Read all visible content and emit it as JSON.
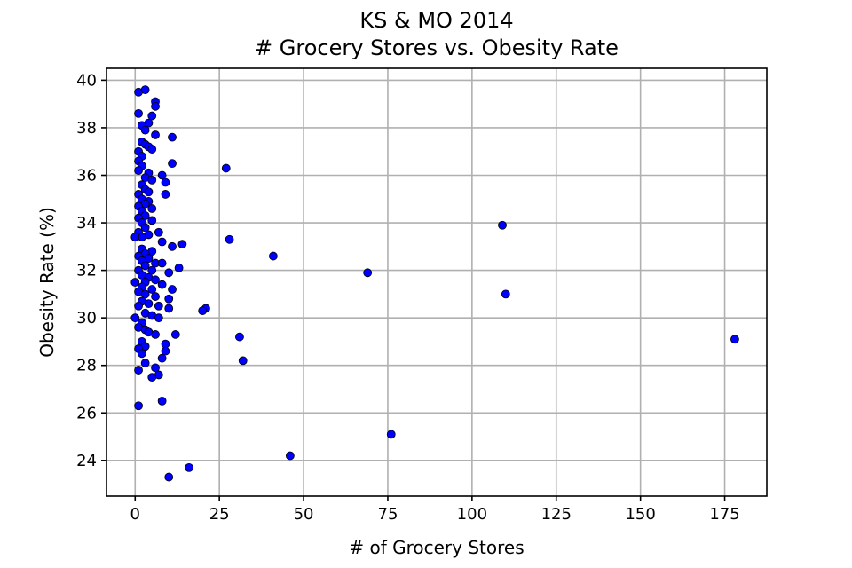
{
  "chart_data": {
    "type": "scatter",
    "title": "KS & MO 2014",
    "subtitle": "# Grocery Stores vs. Obesity Rate",
    "xlabel": "# of Grocery Stores",
    "ylabel": "Obesity Rate (%)",
    "xlim": [
      -8.5,
      187.5
    ],
    "ylim": [
      22.5,
      40.5
    ],
    "xticks": [
      0,
      25,
      50,
      75,
      100,
      125,
      150,
      175
    ],
    "yticks": [
      24,
      26,
      28,
      30,
      32,
      34,
      36,
      38,
      40
    ],
    "grid": true,
    "legend": "none",
    "marker_color": "#0000ff",
    "marker_edge_color": "#000000",
    "points": [
      [
        1,
        39.5
      ],
      [
        3,
        39.6
      ],
      [
        6,
        39.1
      ],
      [
        6,
        38.9
      ],
      [
        1,
        38.6
      ],
      [
        5,
        38.5
      ],
      [
        4,
        38.2
      ],
      [
        2,
        38.1
      ],
      [
        3,
        37.9
      ],
      [
        6,
        37.7
      ],
      [
        11,
        37.6
      ],
      [
        2,
        37.4
      ],
      [
        3,
        37.3
      ],
      [
        4,
        37.2
      ],
      [
        5,
        37.1
      ],
      [
        1,
        37.0
      ],
      [
        2,
        36.8
      ],
      [
        1,
        36.6
      ],
      [
        11,
        36.5
      ],
      [
        2,
        36.4
      ],
      [
        1,
        36.2
      ],
      [
        27,
        36.3
      ],
      [
        4,
        36.1
      ],
      [
        8,
        36.0
      ],
      [
        3,
        35.9
      ],
      [
        5,
        35.8
      ],
      [
        9,
        35.7
      ],
      [
        2,
        35.6
      ],
      [
        3,
        35.4
      ],
      [
        4,
        35.3
      ],
      [
        1,
        35.2
      ],
      [
        9,
        35.2
      ],
      [
        2,
        35.0
      ],
      [
        4,
        34.9
      ],
      [
        3,
        34.8
      ],
      [
        1,
        34.7
      ],
      [
        5,
        34.6
      ],
      [
        2,
        34.5
      ],
      [
        3,
        34.3
      ],
      [
        1,
        34.2
      ],
      [
        5,
        34.1
      ],
      [
        2,
        34.0
      ],
      [
        109,
        33.9
      ],
      [
        3,
        33.8
      ],
      [
        1,
        33.6
      ],
      [
        7,
        33.6
      ],
      [
        4,
        33.5
      ],
      [
        2,
        33.4
      ],
      [
        0,
        33.4
      ],
      [
        28,
        33.3
      ],
      [
        8,
        33.2
      ],
      [
        14,
        33.1
      ],
      [
        11,
        33.0
      ],
      [
        2,
        32.9
      ],
      [
        5,
        32.8
      ],
      [
        3,
        32.7
      ],
      [
        1,
        32.6
      ],
      [
        41,
        32.6
      ],
      [
        4,
        32.5
      ],
      [
        2,
        32.4
      ],
      [
        6,
        32.3
      ],
      [
        8,
        32.3
      ],
      [
        3,
        32.2
      ],
      [
        13,
        32.1
      ],
      [
        1,
        32.0
      ],
      [
        5,
        32.0
      ],
      [
        69,
        31.9
      ],
      [
        10,
        31.9
      ],
      [
        2,
        31.8
      ],
      [
        4,
        31.7
      ],
      [
        6,
        31.6
      ],
      [
        3,
        31.5
      ],
      [
        0,
        31.5
      ],
      [
        8,
        31.4
      ],
      [
        2,
        31.3
      ],
      [
        5,
        31.2
      ],
      [
        11,
        31.2
      ],
      [
        1,
        31.1
      ],
      [
        3,
        31.0
      ],
      [
        110,
        31.0
      ],
      [
        6,
        30.9
      ],
      [
        10,
        30.8
      ],
      [
        2,
        30.7
      ],
      [
        4,
        30.6
      ],
      [
        1,
        30.5
      ],
      [
        7,
        30.5
      ],
      [
        21,
        30.4
      ],
      [
        10,
        30.4
      ],
      [
        20,
        30.3
      ],
      [
        3,
        30.2
      ],
      [
        5,
        30.1
      ],
      [
        7,
        30.0
      ],
      [
        0,
        30.0
      ],
      [
        2,
        29.8
      ],
      [
        1,
        29.6
      ],
      [
        3,
        29.5
      ],
      [
        4,
        29.4
      ],
      [
        6,
        29.3
      ],
      [
        12,
        29.3
      ],
      [
        31,
        29.2
      ],
      [
        178,
        29.1
      ],
      [
        2,
        29.0
      ],
      [
        9,
        28.9
      ],
      [
        3,
        28.8
      ],
      [
        1,
        28.7
      ],
      [
        9,
        28.6
      ],
      [
        2,
        28.5
      ],
      [
        8,
        28.3
      ],
      [
        32,
        28.2
      ],
      [
        3,
        28.1
      ],
      [
        6,
        27.9
      ],
      [
        1,
        27.8
      ],
      [
        7,
        27.6
      ],
      [
        5,
        27.5
      ],
      [
        8,
        26.5
      ],
      [
        1,
        26.3
      ],
      [
        76,
        25.1
      ],
      [
        46,
        24.2
      ],
      [
        16,
        23.7
      ],
      [
        10,
        23.3
      ]
    ]
  }
}
